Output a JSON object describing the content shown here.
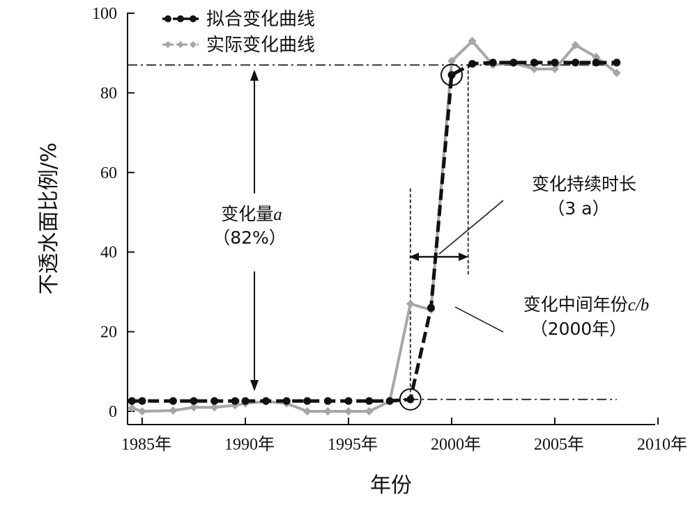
{
  "chart_data": {
    "type": "line",
    "title": "",
    "xlabel": "年份",
    "ylabel": "不透水面比例/%",
    "xlim": [
      1983,
      2010
    ],
    "ylim": [
      0,
      100
    ],
    "x_ticks": [
      1985,
      1990,
      1995,
      2000,
      2005,
      2010
    ],
    "x_tick_labels": [
      "1985年",
      "1990年",
      "1995年",
      "2000年",
      "2005年",
      "2010年"
    ],
    "y_ticks": [
      0,
      20,
      40,
      60,
      80,
      100
    ],
    "y_tick_labels": [
      "0",
      "20",
      "40",
      "60",
      "80",
      "100"
    ],
    "grid": false,
    "legend_position": "top-left",
    "series": [
      {
        "name": "拟合变化曲线",
        "color": "#111111",
        "x": [
          1984.5,
          1985,
          1986.5,
          1987.5,
          1988.5,
          1989.5,
          1990,
          1991,
          1992,
          1993,
          1994,
          1995,
          1996,
          1997,
          1998,
          1999,
          2000,
          2001,
          2002,
          2003,
          2004,
          2005,
          2006,
          2007,
          2008
        ],
        "values": [
          2.6,
          2.6,
          2.6,
          2.6,
          2.6,
          2.6,
          2.6,
          2.6,
          2.6,
          2.6,
          2.6,
          2.6,
          2.6,
          2.6,
          3.0,
          26.0,
          84.5,
          87.3,
          87.6,
          87.6,
          87.6,
          87.6,
          87.6,
          87.6,
          87.6
        ]
      },
      {
        "name": "实际变化曲线",
        "color": "#a6a6a6",
        "x": [
          1984.5,
          1985,
          1986.5,
          1987.5,
          1988.5,
          1989.5,
          1990,
          1991,
          1992,
          1993,
          1994,
          1995,
          1996,
          1997,
          1998,
          1999,
          2000,
          2001,
          2002,
          2003,
          2004,
          2005,
          2006,
          2007,
          2008
        ],
        "values": [
          0.8,
          0.0,
          0.2,
          1.0,
          1.0,
          1.5,
          2.0,
          2.5,
          2.0,
          0.0,
          0.0,
          0.0,
          0.0,
          2.5,
          27.0,
          25.5,
          88.0,
          93.0,
          87.0,
          87.5,
          86.0,
          86.0,
          92.0,
          89.0,
          85.0
        ]
      }
    ],
    "reference_lines": [
      {
        "name": "upper-level",
        "y": 87.0,
        "x_start": 1980.5,
        "x_end": 2008
      },
      {
        "name": "lower-level",
        "y": 3.0,
        "x_start": 1997,
        "x_end": 2008
      }
    ],
    "vertical_lines": [
      {
        "name": "start-year",
        "x": 1998,
        "y_from": 56,
        "y_to": 3
      },
      {
        "name": "end-year",
        "x": 2000.8,
        "y_from": 87,
        "y_to": 34
      }
    ],
    "circled_points": [
      {
        "x": 1998,
        "y": 3.0
      },
      {
        "x": 2000,
        "y": 84.5
      }
    ],
    "annotations": {
      "change_amount_label": "变化量",
      "change_amount_var": "a",
      "change_amount_value": "（82%）",
      "duration_label": "变化持续时长",
      "duration_value": "（3 a）",
      "mid_year_label": "变化中间年份",
      "mid_year_var": "c/b",
      "mid_year_value": "（2000年）"
    }
  }
}
